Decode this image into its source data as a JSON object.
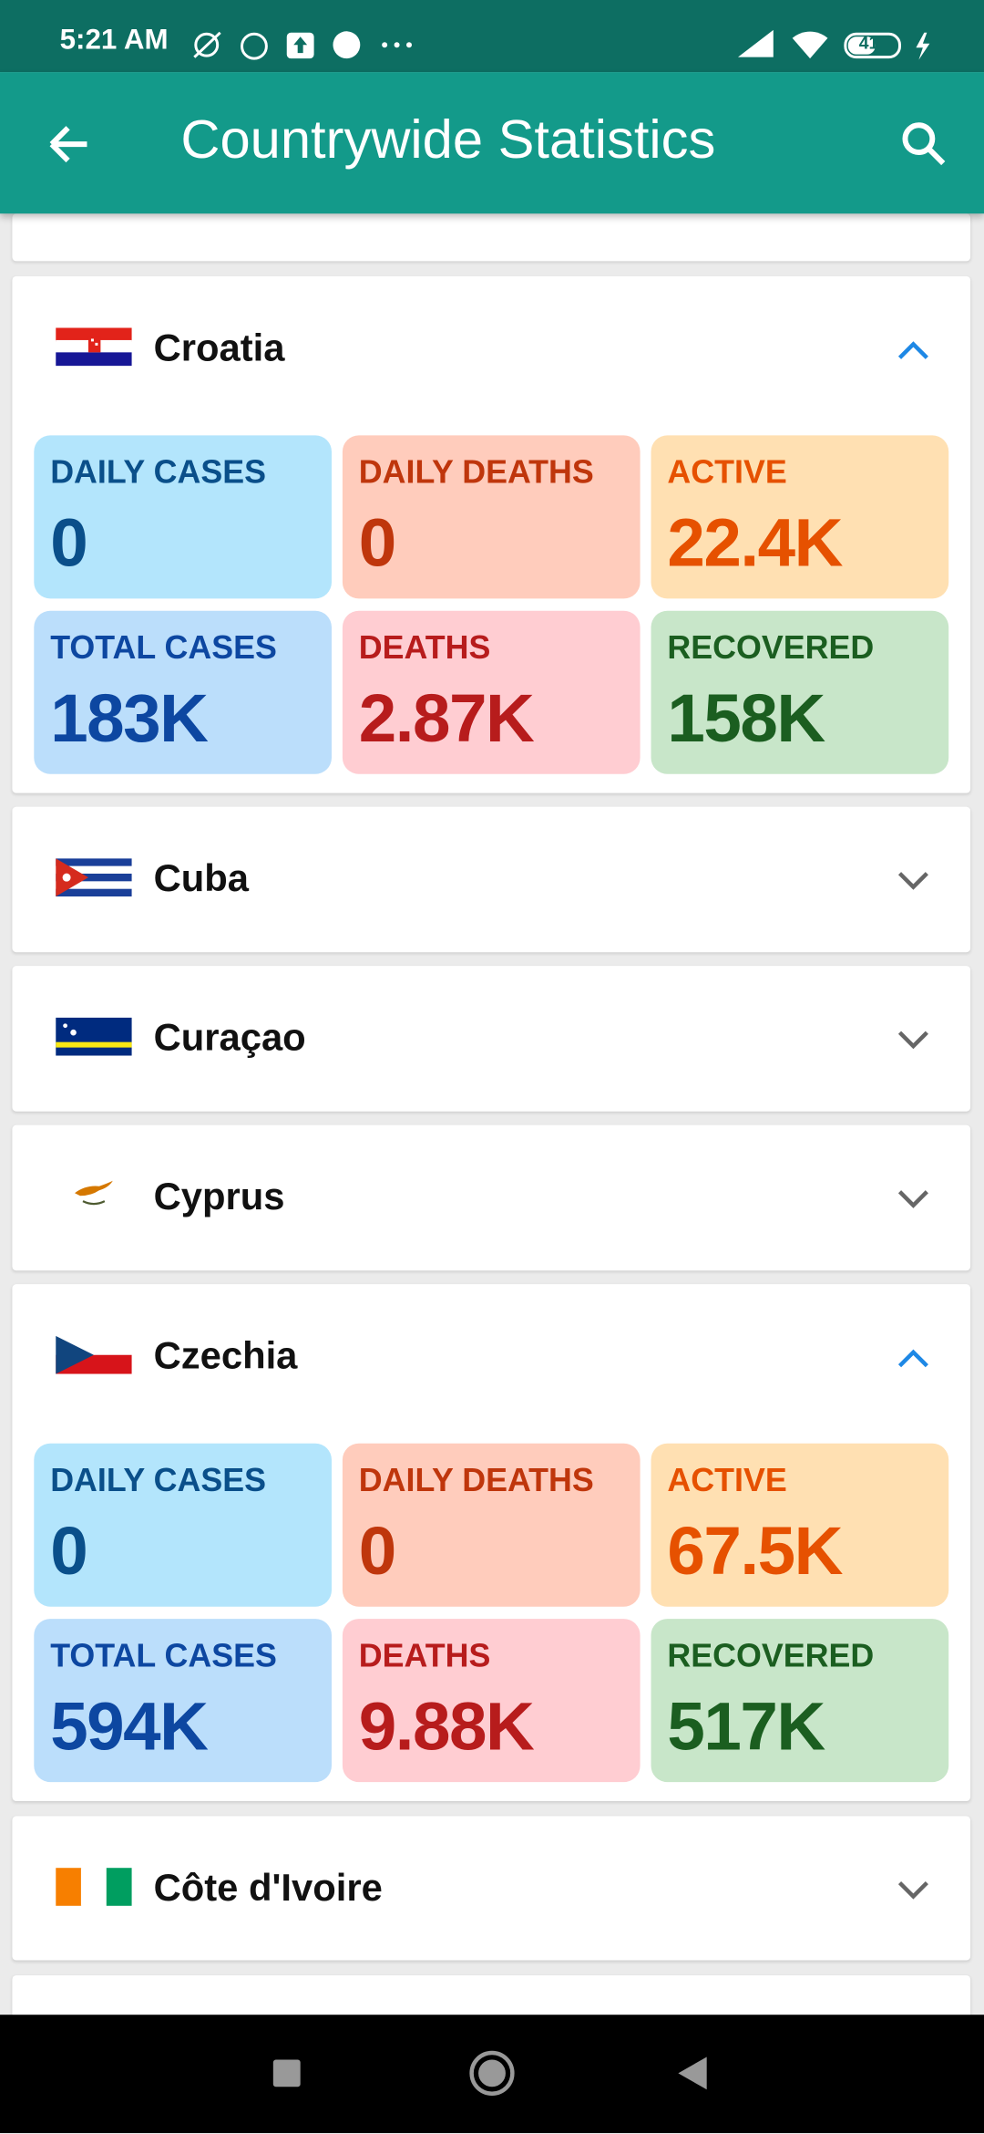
{
  "status_bar": {
    "time": "5:21 AM",
    "battery": "41"
  },
  "app_bar": {
    "title": "Countrywide Statistics"
  },
  "countries": [
    {
      "name": "Croatia",
      "stats": [
        {
          "label": "DAILY CASES",
          "value": "0"
        },
        {
          "label": "DAILY DEATHS",
          "value": "0"
        },
        {
          "label": "ACTIVE",
          "value": "22.4K"
        },
        {
          "label": "TOTAL CASES",
          "value": "183K"
        },
        {
          "label": "DEATHS",
          "value": "2.87K"
        },
        {
          "label": "RECOVERED",
          "value": "158K"
        }
      ]
    },
    {
      "name": "Cuba"
    },
    {
      "name": "Curaçao"
    },
    {
      "name": "Cyprus"
    },
    {
      "name": "Czechia",
      "stats": [
        {
          "label": "DAILY CASES",
          "value": "0"
        },
        {
          "label": "DAILY DEATHS",
          "value": "0"
        },
        {
          "label": "ACTIVE",
          "value": "67.5K"
        },
        {
          "label": "TOTAL CASES",
          "value": "594K"
        },
        {
          "label": "DEATHS",
          "value": "9.88K"
        },
        {
          "label": "RECOVERED",
          "value": "517K"
        }
      ]
    },
    {
      "name": "Côte d'Ivoire"
    }
  ]
}
